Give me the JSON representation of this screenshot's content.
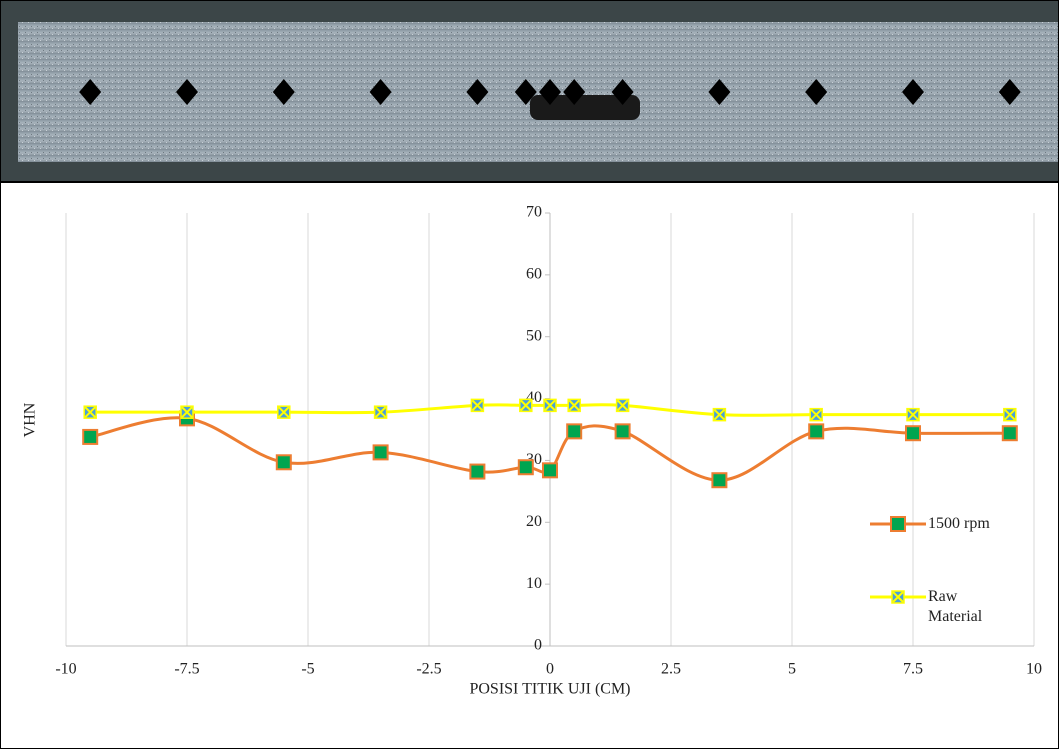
{
  "chart_data": {
    "type": "line",
    "x_label": "POSISI TITIK UJI (CM)",
    "y_label": "VHN",
    "x": [
      -9.5,
      -7.5,
      -5.5,
      -3.5,
      -1.5,
      -0.5,
      0,
      0.5,
      1.5,
      3.5,
      5.5,
      7.5,
      9.5
    ],
    "series": [
      {
        "name": "1500 rpm",
        "color": "#ed7d31",
        "marker_color": "#00a550",
        "values": [
          33.8,
          36.8,
          29.7,
          31.3,
          28.2,
          28.9,
          28.4,
          34.7,
          34.7,
          26.8,
          34.7,
          34.4,
          34.4
        ]
      },
      {
        "name": "Raw Material",
        "color": "#ffff00",
        "marker_color": "#4aa0d8",
        "values": [
          37.8,
          37.8,
          37.8,
          37.8,
          38.9,
          38.9,
          38.9,
          38.9,
          38.9,
          37.4,
          37.4,
          37.4,
          37.4
        ]
      }
    ],
    "xlim": [
      -10,
      10
    ],
    "xticks": [
      -10,
      -7.5,
      -5,
      -2.5,
      0,
      2.5,
      5,
      7.5,
      10
    ],
    "ylim": [
      0,
      70
    ],
    "yticks": [
      0,
      10,
      20,
      30,
      40,
      50,
      60,
      70
    ],
    "grid": true,
    "smooth": true,
    "legend": "right"
  }
}
